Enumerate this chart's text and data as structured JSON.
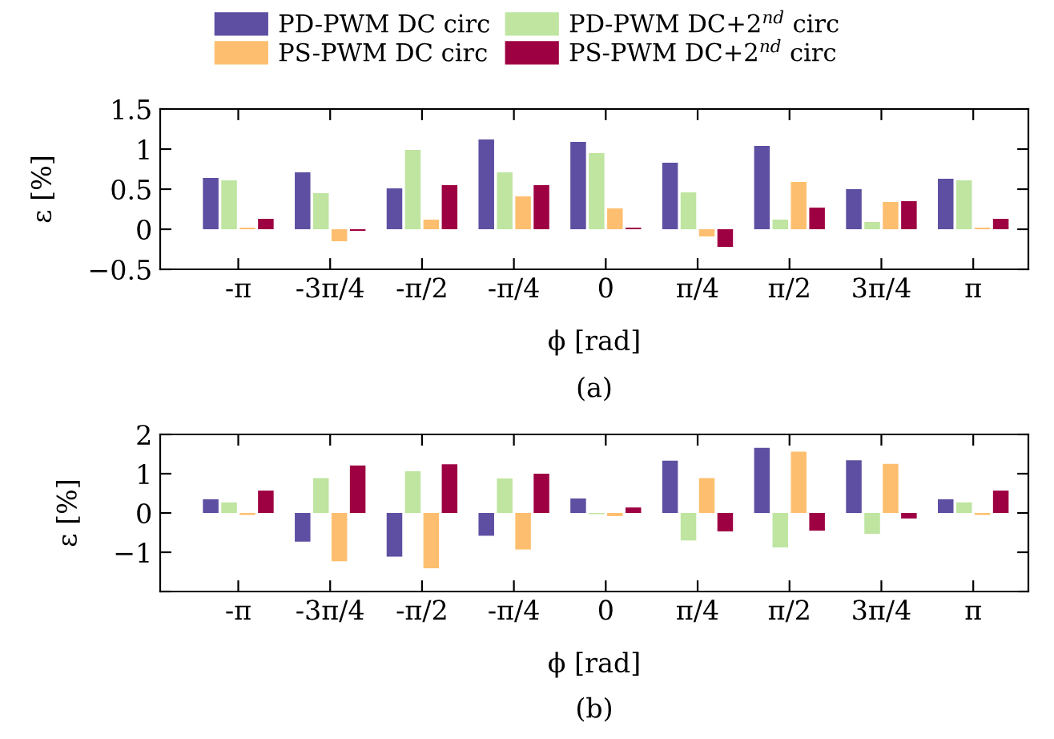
{
  "chart_data": [
    {
      "type": "bar",
      "title": "(a)",
      "xlabel": "ϕ [rad]",
      "ylabel": "ε [%]",
      "legend": "top",
      "grid": false,
      "categories": [
        "-π",
        "-3π/4",
        "-π/2",
        "-π/4",
        "0",
        "π/4",
        "π/2",
        "3π/4",
        "π"
      ],
      "ylim": [
        -0.5,
        1.5
      ],
      "yticks": [
        {
          "value": -0.5,
          "label": "−0.5"
        },
        0,
        0.5,
        1,
        1.5
      ],
      "series": [
        {
          "name": "PD-PWM DC circ",
          "color": "#5e4fa2",
          "values": [
            0.64,
            0.71,
            0.51,
            1.12,
            1.09,
            0.83,
            1.04,
            0.5,
            0.63
          ]
        },
        {
          "name": "PD-PWM DC+2$^{nd}$ circ",
          "color": "#bfe5a0",
          "values": [
            0.61,
            0.45,
            0.99,
            0.71,
            0.95,
            0.46,
            0.12,
            0.09,
            0.61
          ]
        },
        {
          "name": "PS-PWM DC circ",
          "color": "#fdbf6f",
          "values": [
            0.02,
            -0.15,
            0.12,
            0.41,
            0.26,
            -0.09,
            0.59,
            0.34,
            0.02
          ]
        },
        {
          "name": "PS-PWM DC+2$^{nd}$ circ",
          "color": "#9e0142",
          "values": [
            0.13,
            -0.02,
            0.55,
            0.55,
            0.02,
            -0.22,
            0.27,
            0.35,
            0.13
          ]
        }
      ]
    },
    {
      "type": "bar",
      "title": "(b)",
      "xlabel": "ϕ [rad]",
      "ylabel": "ε [%]",
      "grid": false,
      "categories": [
        "-π",
        "-3π/4",
        "-π/2",
        "-π/4",
        "0",
        "π/4",
        "π/2",
        "3π/4",
        "π"
      ],
      "ylim": [
        -2,
        2
      ],
      "yticks": [
        {
          "value": -2,
          "label": null
        },
        {
          "value": -1,
          "label": "−1"
        },
        0,
        1,
        2
      ],
      "series": [
        {
          "color": "#5e4fa2",
          "values": [
            0.35,
            -0.73,
            -1.11,
            -0.58,
            0.37,
            1.33,
            1.66,
            1.34,
            0.35
          ]
        },
        {
          "color": "#bfe5a0",
          "values": [
            0.27,
            0.89,
            1.06,
            0.88,
            -0.03,
            -0.7,
            -0.88,
            -0.53,
            0.27
          ]
        },
        {
          "color": "#fdbf6f",
          "values": [
            -0.05,
            -1.23,
            -1.41,
            -0.93,
            -0.08,
            0.89,
            1.56,
            1.25,
            -0.05
          ]
        },
        {
          "color": "#9e0142",
          "values": [
            0.57,
            1.21,
            1.24,
            1.0,
            0.14,
            -0.47,
            -0.45,
            -0.14,
            0.57
          ]
        }
      ]
    }
  ]
}
